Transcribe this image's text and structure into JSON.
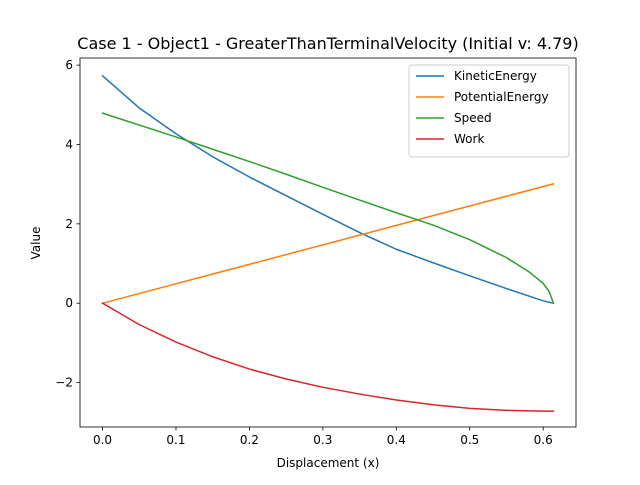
{
  "chart_data": {
    "type": "line",
    "title": "Case 1 - Object1 - GreaterThanTerminalVelocity (Initial v: 4.79)",
    "xlabel": "Displacement (x)",
    "ylabel": "Value",
    "xlim": [
      -0.0307,
      0.6447
    ],
    "ylim": [
      -3.12,
      6.18
    ],
    "xticks": [
      0.0,
      0.1,
      0.2,
      0.3,
      0.4,
      0.5,
      0.6
    ],
    "xtick_labels": [
      "0.0",
      "0.1",
      "0.2",
      "0.3",
      "0.4",
      "0.5",
      "0.6"
    ],
    "yticks": [
      -2,
      0,
      2,
      4,
      6
    ],
    "ytick_labels": [
      "−2",
      "0",
      "2",
      "4",
      "6"
    ],
    "grid": false,
    "legend_position": "top-right",
    "series": [
      {
        "name": "KineticEnergy",
        "color": "#1f77b4",
        "x": [
          0.0,
          0.05,
          0.1,
          0.15,
          0.2,
          0.25,
          0.3,
          0.35,
          0.4,
          0.45,
          0.5,
          0.55,
          0.6,
          0.614
        ],
        "y": [
          5.73,
          4.92,
          4.27,
          3.69,
          3.18,
          2.71,
          2.24,
          1.78,
          1.36,
          1.02,
          0.69,
          0.37,
          0.06,
          0.0
        ]
      },
      {
        "name": "PotentialEnergy",
        "color": "#ff7f0e",
        "x": [
          0.0,
          0.614
        ],
        "y": [
          0.0,
          3.01
        ]
      },
      {
        "name": "Speed",
        "color": "#2ca02c",
        "x": [
          0.0,
          0.05,
          0.1,
          0.15,
          0.2,
          0.25,
          0.3,
          0.35,
          0.4,
          0.45,
          0.5,
          0.55,
          0.58,
          0.6,
          0.608,
          0.614
        ],
        "y": [
          4.79,
          4.49,
          4.19,
          3.88,
          3.57,
          3.25,
          2.92,
          2.6,
          2.28,
          1.97,
          1.6,
          1.15,
          0.8,
          0.5,
          0.3,
          0.0
        ]
      },
      {
        "name": "Work",
        "color": "#d62728",
        "x": [
          0.0,
          0.05,
          0.1,
          0.15,
          0.2,
          0.25,
          0.3,
          0.35,
          0.4,
          0.45,
          0.5,
          0.55,
          0.6,
          0.614
        ],
        "y": [
          0.0,
          -0.54,
          -0.98,
          -1.35,
          -1.66,
          -1.91,
          -2.12,
          -2.29,
          -2.44,
          -2.56,
          -2.65,
          -2.7,
          -2.72,
          -2.72
        ]
      }
    ]
  }
}
